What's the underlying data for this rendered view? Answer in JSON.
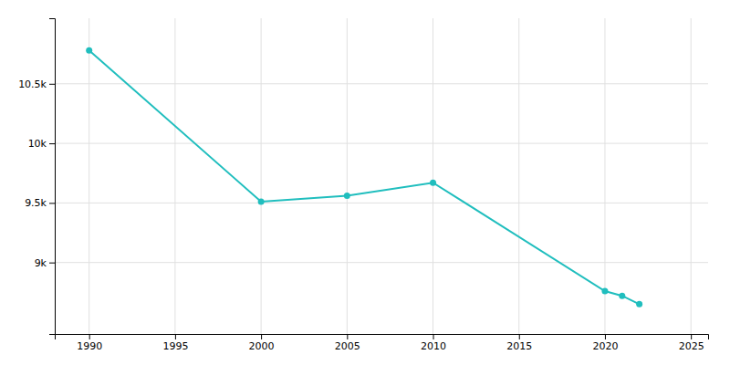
{
  "chart_data": {
    "type": "line",
    "x": [
      1990,
      2000,
      2005,
      2010,
      2020,
      2021,
      2022
    ],
    "values": [
      10780,
      9511,
      9560,
      9670,
      8760,
      8720,
      8650
    ],
    "color": "#20BEBE",
    "marker": "circle",
    "xlim": [
      1988,
      2026
    ],
    "ylim": [
      8400,
      11050
    ],
    "xticks": [
      1990,
      1995,
      2000,
      2005,
      2010,
      2015,
      2020,
      2025
    ],
    "yticks": [
      {
        "value": 9000,
        "label": "9k"
      },
      {
        "value": 9500,
        "label": "9.5k"
      },
      {
        "value": 10000,
        "label": "10k"
      },
      {
        "value": 10500,
        "label": "10.5k"
      }
    ],
    "grid": true
  }
}
